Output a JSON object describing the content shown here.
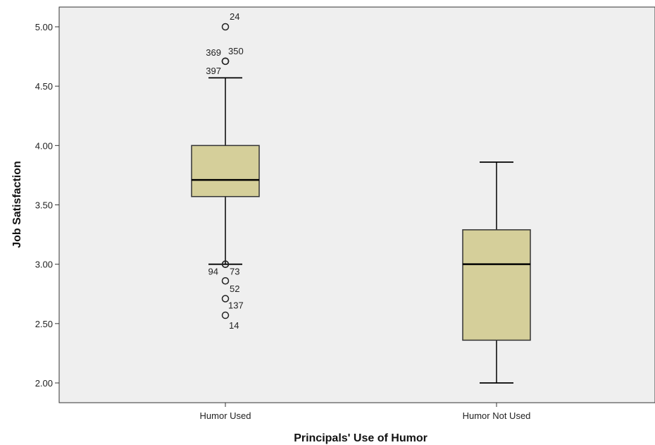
{
  "chart_data": {
    "type": "boxplot",
    "xlabel": "Principals' Use of Humor",
    "ylabel": "Job Satisfaction",
    "ylim": [
      1.9,
      5.15
    ],
    "yticks": [
      2.0,
      2.5,
      3.0,
      3.5,
      4.0,
      4.5,
      5.0
    ],
    "ytick_labels": [
      "2.00",
      "2.50",
      "3.00",
      "3.50",
      "4.00",
      "4.50",
      "5.00"
    ],
    "grid": false,
    "background": "#efefef",
    "box_fill": "#d5cf9a",
    "categories": [
      "Humor Used",
      "Humor Not Used"
    ],
    "boxes": [
      {
        "category": "Humor Used",
        "whisker_low": 3.0,
        "q1": 3.57,
        "median": 3.71,
        "q3": 4.0,
        "whisker_high": 4.57,
        "outliers": [
          {
            "value": 5.0,
            "label": "24"
          },
          {
            "value": 4.71,
            "label": "369"
          },
          {
            "value": 4.71,
            "label": "350"
          },
          {
            "value": 4.71,
            "label": "397"
          },
          {
            "value": 3.0,
            "label": "94"
          },
          {
            "value": 3.0,
            "label": "73"
          },
          {
            "value": 2.86,
            "label": "52"
          },
          {
            "value": 2.71,
            "label": "137"
          },
          {
            "value": 2.57,
            "label": "14"
          }
        ]
      },
      {
        "category": "Humor Not Used",
        "whisker_low": 2.0,
        "q1": 2.36,
        "median": 3.0,
        "q3": 3.29,
        "whisker_high": 3.86,
        "outliers": []
      }
    ]
  }
}
